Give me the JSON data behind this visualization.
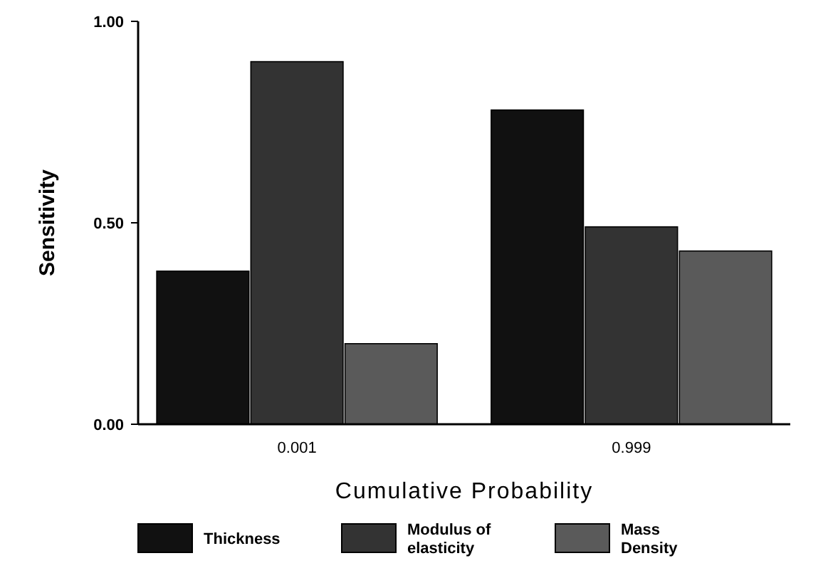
{
  "chart_data": {
    "type": "bar",
    "xlabel": "Cumulative Probability",
    "ylabel": "Sensitivity",
    "categories": [
      "0.001",
      "0.999"
    ],
    "series": [
      {
        "name": "Thickness",
        "color": "#111111",
        "values": [
          0.38,
          0.78
        ]
      },
      {
        "name": "Modulus of elasticity",
        "color": "#333333",
        "values": [
          0.9,
          0.49
        ]
      },
      {
        "name": "Mass Density",
        "color": "#5a5a5a",
        "values": [
          0.2,
          0.43
        ]
      }
    ],
    "ylim": [
      0,
      1
    ],
    "yticks": [
      {
        "value": 0,
        "label": "0.00"
      },
      {
        "value": 0.5,
        "label": "0.50"
      },
      {
        "value": 1,
        "label": "1.00"
      }
    ],
    "grid": false,
    "legend": "bottom"
  }
}
